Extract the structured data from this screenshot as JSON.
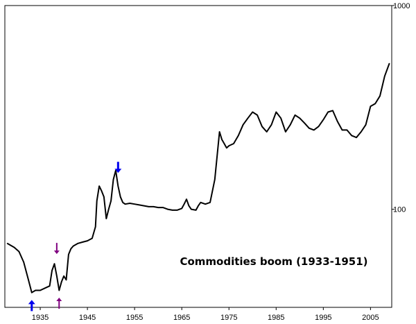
{
  "chart_data": {
    "type": "line",
    "title": "",
    "xlabel": "",
    "ylabel": "",
    "y_scale": "log",
    "grid": false,
    "xlim": [
      1927.5,
      2009.5
    ],
    "ylim": [
      33,
      1000
    ],
    "x_ticks": [
      1935,
      1945,
      1955,
      1965,
      1975,
      1985,
      1995,
      2005
    ],
    "x_tick_labels": [
      "1935",
      "1945",
      "1955",
      "1965",
      "1975",
      "1985",
      "1995",
      "2005"
    ],
    "y_ticks": [
      100,
      1000
    ],
    "y_tick_labels": [
      "100",
      "1000"
    ],
    "annotation": "Commodities boom (1933-1951)",
    "markers": [
      {
        "x": 1933.2,
        "y": 37,
        "direction": "up",
        "color": "#0000ee"
      },
      {
        "x": 1938.5,
        "y": 58,
        "direction": "down",
        "color": "#800080"
      },
      {
        "x": 1939.0,
        "y": 38,
        "direction": "up",
        "color": "#800080"
      },
      {
        "x": 1951.5,
        "y": 145,
        "direction": "down",
        "color": "#0000ee"
      }
    ],
    "series": [
      {
        "x": [
          1928,
          1929.5,
          1930.5,
          1931.5,
          1932.5,
          1933.2,
          1934,
          1935,
          1936,
          1937,
          1937.5,
          1938,
          1938.5,
          1939,
          1939.5,
          1940,
          1940.5,
          1941,
          1941.5,
          1942,
          1943,
          1944,
          1945,
          1946,
          1946.7,
          1947,
          1947.5,
          1948,
          1948.5,
          1949,
          1949.5,
          1950,
          1950.5,
          1951,
          1951.5,
          1952,
          1952.5,
          1953,
          1954,
          1955,
          1956,
          1957,
          1958,
          1959,
          1960,
          1961,
          1962,
          1963,
          1964,
          1965,
          1965.5,
          1966,
          1966.5,
          1967,
          1968,
          1968.5,
          1969,
          1970,
          1971,
          1972,
          1973,
          1973.5,
          1974,
          1974.5,
          1975,
          1976,
          1977,
          1978,
          1979,
          1980,
          1981,
          1982,
          1983,
          1984,
          1985,
          1986,
          1987,
          1988,
          1989,
          1990,
          1991,
          1992,
          1993,
          1994,
          1995,
          1996,
          1997,
          1998,
          1999,
          2000,
          2001,
          2002,
          2003,
          2004,
          2005,
          2006,
          2007,
          2008,
          2009
        ],
        "values": [
          68,
          65,
          62,
          55,
          45,
          39,
          40,
          40,
          41,
          42,
          50,
          54,
          47,
          40,
          44,
          47,
          45,
          60,
          64,
          66,
          68,
          69,
          70,
          72,
          82,
          110,
          130,
          123,
          115,
          90,
          100,
          110,
          140,
          155,
          130,
          115,
          108,
          106,
          107,
          106,
          105,
          104,
          103,
          103,
          102,
          102,
          100,
          99,
          99,
          101,
          106,
          112,
          104,
          100,
          99,
          104,
          108,
          106,
          108,
          140,
          240,
          220,
          210,
          200,
          205,
          210,
          230,
          260,
          280,
          300,
          290,
          255,
          240,
          260,
          300,
          280,
          240,
          260,
          290,
          280,
          265,
          250,
          245,
          255,
          275,
          300,
          305,
          270,
          245,
          245,
          230,
          225,
          240,
          260,
          320,
          330,
          360,
          450,
          520
        ]
      }
    ]
  }
}
